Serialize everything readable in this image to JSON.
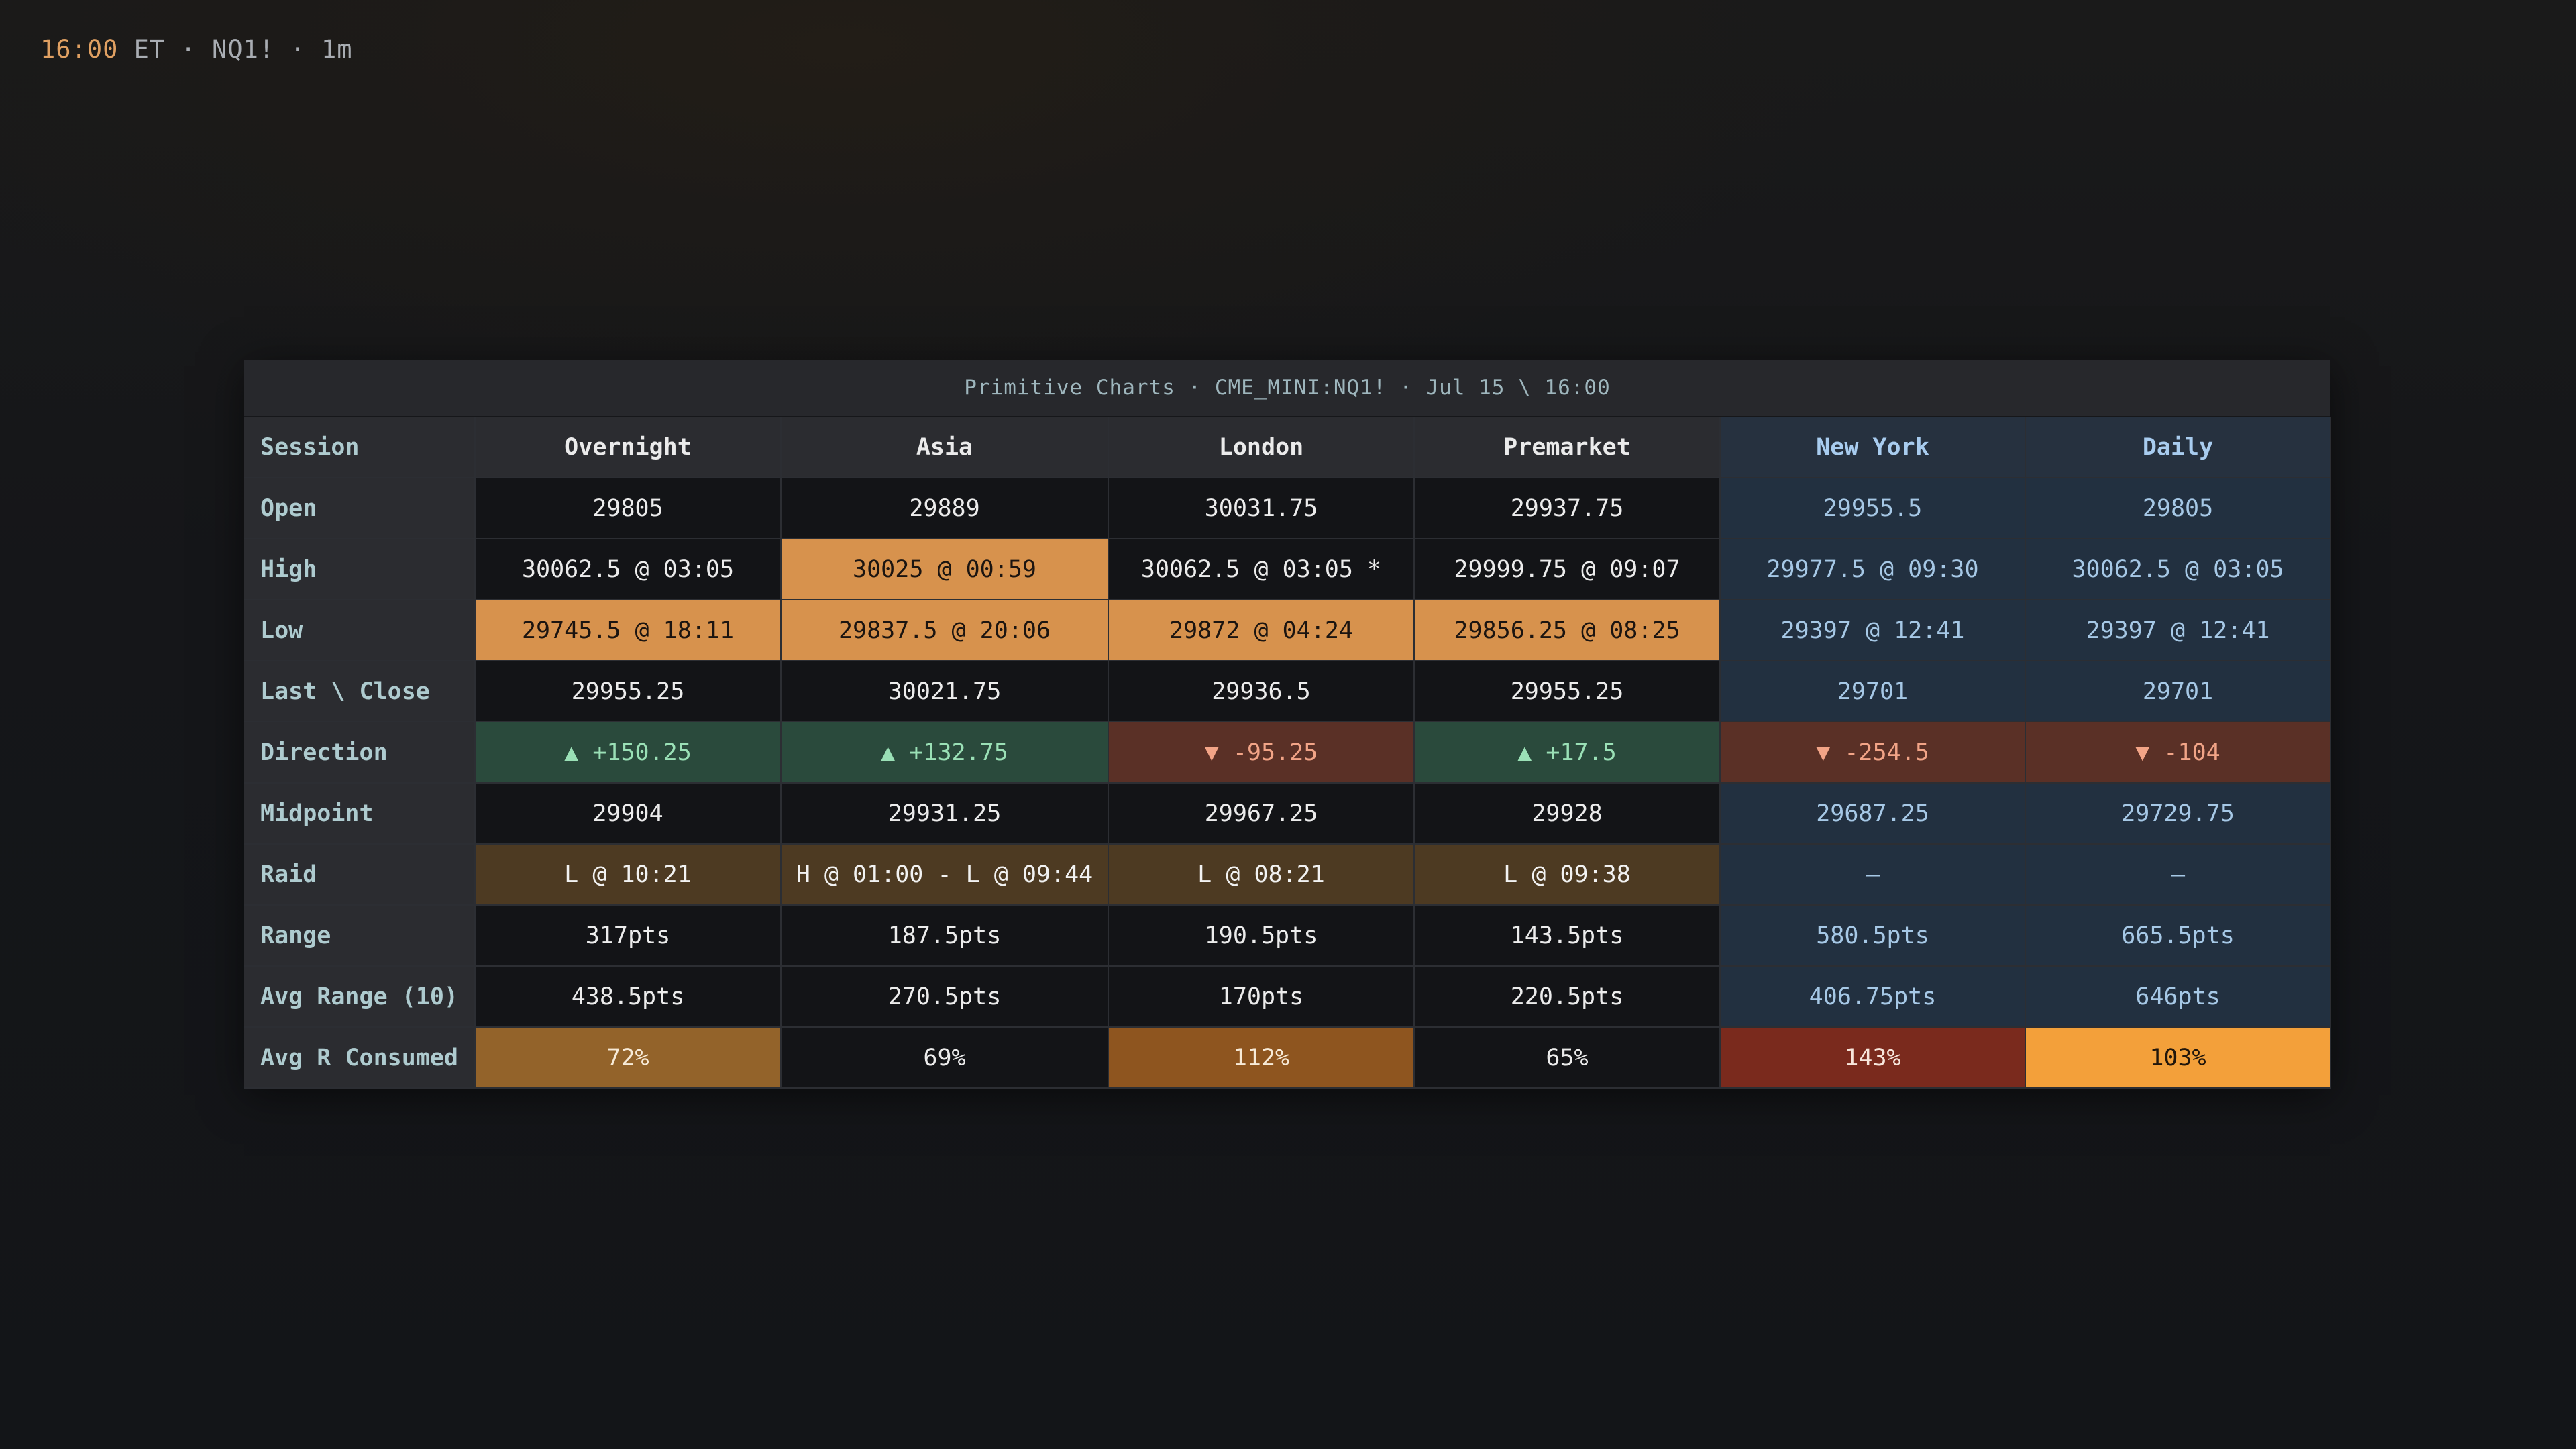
{
  "status_bar": {
    "time": "16:00",
    "rest": " ET · NQ1! · 1m"
  },
  "panel": {
    "title": "Primitive Charts · CME_MINI:NQ1! · Jul 15 \\ 16:00"
  },
  "headers": {
    "session": "Session",
    "overnight": "Overnight",
    "asia": "Asia",
    "london": "London",
    "premarket": "Premarket",
    "new_york": "New York",
    "daily": "Daily"
  },
  "rows": {
    "open": {
      "label": "Open",
      "overnight": "29805",
      "asia": "29889",
      "london": "30031.75",
      "premarket": "29937.75",
      "new_york": "29955.5",
      "daily": "29805"
    },
    "high": {
      "label": "High",
      "overnight": "30062.5 @ 03:05",
      "asia": "30025 @ 00:59",
      "london": "30062.5 @ 03:05 *",
      "premarket": "29999.75 @ 09:07",
      "new_york": "29977.5 @ 09:30",
      "daily": "30062.5 @ 03:05"
    },
    "low": {
      "label": "Low",
      "overnight": "29745.5 @ 18:11",
      "asia": "29837.5 @ 20:06",
      "london": "29872 @ 04:24",
      "premarket": "29856.25 @ 08:25",
      "new_york": "29397 @ 12:41",
      "daily": "29397 @ 12:41"
    },
    "last_close": {
      "label": "Last \\ Close",
      "overnight": "29955.25",
      "asia": "30021.75",
      "london": "29936.5",
      "premarket": "29955.25",
      "new_york": "29701",
      "daily": "29701"
    },
    "direction": {
      "label": "Direction",
      "overnight": "▲ +150.25",
      "asia": "▲ +132.75",
      "london": "▼ -95.25",
      "premarket": "▲ +17.5",
      "new_york": "▼ -254.5",
      "daily": "▼ -104"
    },
    "midpoint": {
      "label": "Midpoint",
      "overnight": "29904",
      "asia": "29931.25",
      "london": "29967.25",
      "premarket": "29928",
      "new_york": "29687.25",
      "daily": "29729.75"
    },
    "raid": {
      "label": "Raid",
      "overnight": "L @ 10:21",
      "asia": "H @ 01:00 - L @ 09:44",
      "london": "L @ 08:21",
      "premarket": "L @ 09:38",
      "new_york": "–",
      "daily": "–"
    },
    "range": {
      "label": "Range",
      "overnight": "317pts",
      "asia": "187.5pts",
      "london": "190.5pts",
      "premarket": "143.5pts",
      "new_york": "580.5pts",
      "daily": "665.5pts"
    },
    "avg_range": {
      "label": "Avg Range (10)",
      "overnight": "438.5pts",
      "asia": "270.5pts",
      "london": "170pts",
      "premarket": "220.5pts",
      "new_york": "406.75pts",
      "daily": "646pts"
    },
    "avg_r_consumed": {
      "label": "Avg R Consumed",
      "overnight": "72%",
      "asia": "69%",
      "london": "112%",
      "premarket": "65%",
      "new_york": "143%",
      "daily": "103%"
    }
  },
  "colors": {
    "background": "#131518",
    "highlight": "#d7924d",
    "up": "#2a4a3c",
    "down": "#5a3026",
    "raid": "#4d3a22",
    "new_york_column": "#223040",
    "consumed_brown": "#93632a",
    "consumed_rust": "#8e551f",
    "consumed_red": "#7a2a1d",
    "consumed_orange": "#f3a03a"
  }
}
